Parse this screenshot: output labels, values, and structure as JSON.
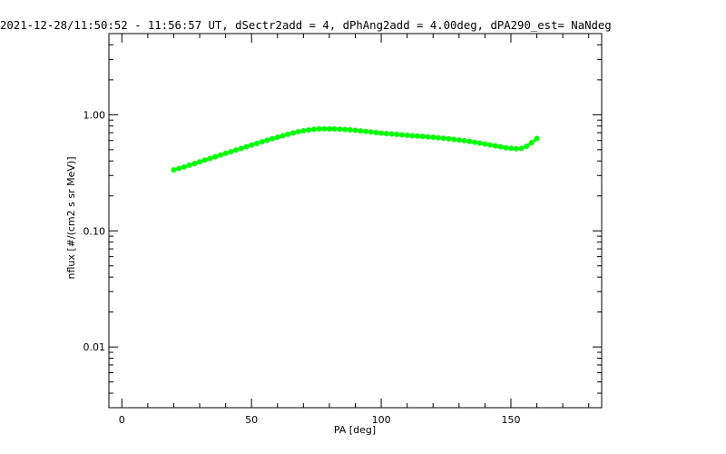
{
  "chart_data": {
    "type": "line",
    "title": "2021-12-28/11:50:52 - 11:56:57 UT, dSectr2add = 4, dPhAng2add = 4.00deg, dPA290_est=   NaNdeg",
    "xlabel": "PA [deg]",
    "ylabel": "nflux [#/(cm2 s sr MeV)]",
    "xlim": [
      -5,
      185
    ],
    "ylim": [
      0.003,
      5.0
    ],
    "yscale": "log",
    "xticks": [
      {
        "value": 0,
        "label": "0"
      },
      {
        "value": 50,
        "label": "50"
      },
      {
        "value": 100,
        "label": "100"
      },
      {
        "value": 150,
        "label": "150"
      }
    ],
    "yticks": [
      {
        "value": 0.01,
        "label": "0.01"
      },
      {
        "value": 0.1,
        "label": "0.10"
      },
      {
        "value": 1.0,
        "label": "1.00"
      }
    ],
    "grid": false,
    "series": [
      {
        "color": "#00ff00",
        "x": [
          20,
          22,
          24,
          26,
          28,
          30,
          32,
          34,
          36,
          38,
          40,
          42,
          44,
          46,
          48,
          50,
          52,
          54,
          56,
          58,
          60,
          62,
          64,
          66,
          68,
          70,
          72,
          74,
          76,
          78,
          80,
          82,
          84,
          86,
          88,
          90,
          92,
          94,
          96,
          98,
          100,
          102,
          104,
          106,
          108,
          110,
          112,
          114,
          116,
          118,
          120,
          122,
          124,
          126,
          128,
          130,
          132,
          134,
          136,
          138,
          140,
          142,
          144,
          146,
          148,
          150,
          152,
          154,
          156,
          158,
          160
        ],
        "y": [
          0.335,
          0.345,
          0.355,
          0.368,
          0.38,
          0.393,
          0.407,
          0.42,
          0.435,
          0.45,
          0.465,
          0.48,
          0.497,
          0.513,
          0.53,
          0.548,
          0.566,
          0.585,
          0.603,
          0.622,
          0.641,
          0.66,
          0.679,
          0.697,
          0.713,
          0.728,
          0.74,
          0.75,
          0.755,
          0.757,
          0.757,
          0.755,
          0.752,
          0.747,
          0.741,
          0.734,
          0.726,
          0.718,
          0.71,
          0.702,
          0.695,
          0.689,
          0.683,
          0.677,
          0.671,
          0.665,
          0.66,
          0.655,
          0.65,
          0.645,
          0.64,
          0.634,
          0.628,
          0.621,
          0.614,
          0.606,
          0.598,
          0.589,
          0.58,
          0.57,
          0.56,
          0.55,
          0.54,
          0.53,
          0.52,
          0.515,
          0.51,
          0.513,
          0.535,
          0.575,
          0.625
        ]
      }
    ]
  }
}
